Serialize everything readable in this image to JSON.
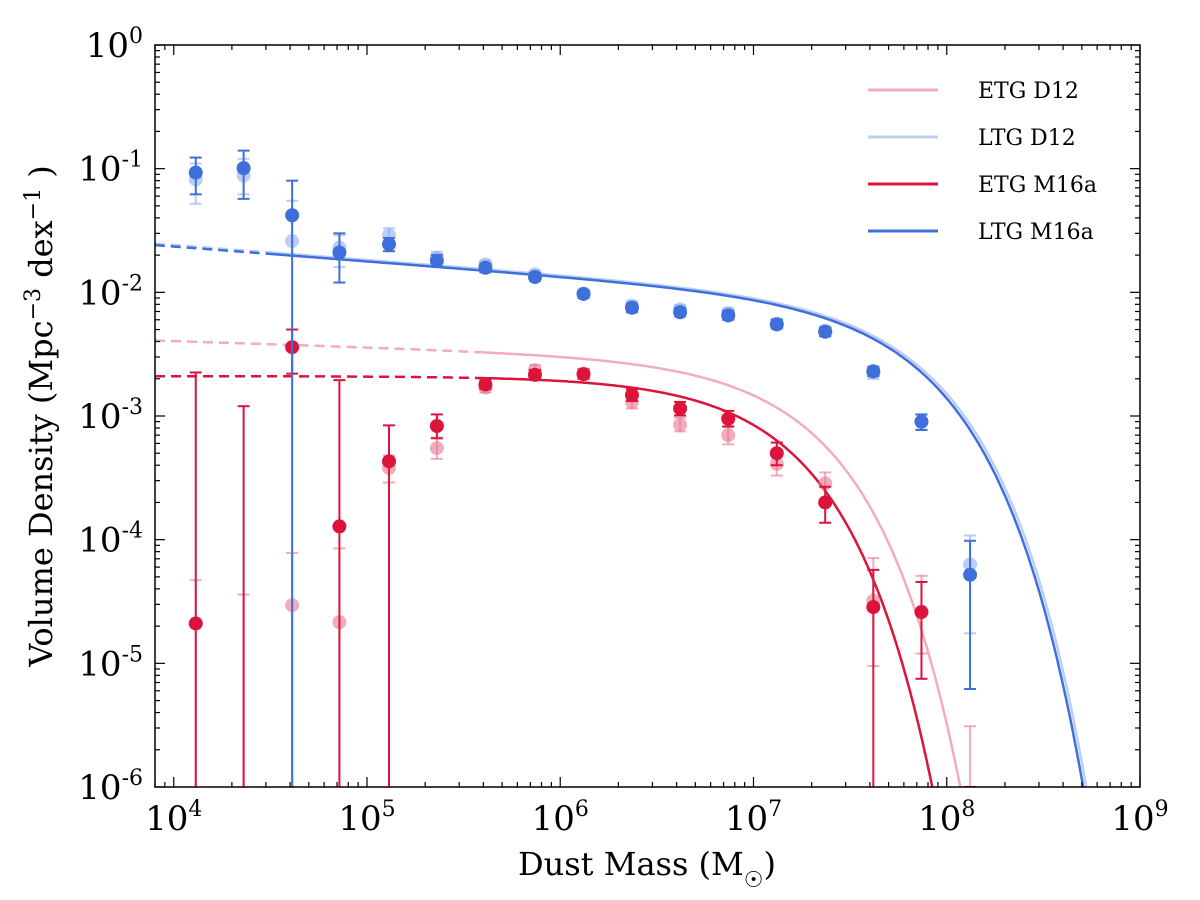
{
  "chart_data": {
    "type": "scatter",
    "title": "",
    "xlabel": "Dust Mass (M",
    "xlabel_sub": "☉",
    "xlabel_close": ")",
    "ylabel": "Volume Density (Mpc",
    "ylabel_sup1": "−3",
    "ylabel_mid": " dex",
    "ylabel_sup2": "−1",
    "ylabel_close": " )",
    "xscale": "log",
    "yscale": "log",
    "xlim": [
      8000,
      1000000000
    ],
    "ylim": [
      1e-06,
      1
    ],
    "x_ticks": [
      {
        "base": "10",
        "exp": "4",
        "value": 10000
      },
      {
        "base": "10",
        "exp": "5",
        "value": 100000
      },
      {
        "base": "10",
        "exp": "6",
        "value": 1000000
      },
      {
        "base": "10",
        "exp": "7",
        "value": 10000000
      },
      {
        "base": "10",
        "exp": "8",
        "value": 100000000
      },
      {
        "base": "10",
        "exp": "9",
        "value": 1000000000
      }
    ],
    "y_ticks": [
      {
        "base": "10",
        "exp": "0",
        "value": 1
      },
      {
        "base": "10",
        "exp": "-1",
        "value": 0.1
      },
      {
        "base": "10",
        "exp": "-2",
        "value": 0.01
      },
      {
        "base": "10",
        "exp": "-3",
        "value": 0.001
      },
      {
        "base": "10",
        "exp": "-4",
        "value": 0.0001
      },
      {
        "base": "10",
        "exp": "-5",
        "value": 1e-05
      },
      {
        "base": "10",
        "exp": "-6",
        "value": 1e-06
      }
    ],
    "legend_position": "top-right",
    "series": [
      {
        "name": "ETG D12",
        "color": "#e8778f",
        "alpha": 0.6,
        "fit": {
          "alpha": -1.05,
          "mstar": 15000000,
          "phistar": 0.0028,
          "solid_from": 400000
        },
        "points": [
          {
            "x": 13000,
            "y": null,
            "lo": 1e-06,
            "hi": 4.7e-05
          },
          {
            "x": 23000,
            "y": null,
            "lo": 1e-06,
            "hi": 3.6e-05
          },
          {
            "x": 41000,
            "y": 2.95e-05,
            "lo": 1e-06,
            "hi": 7.8e-05
          },
          {
            "x": 72000,
            "y": 2.15e-05,
            "lo": 1e-06,
            "hi": 8.5e-05
          },
          {
            "x": 130000,
            "y": 0.00038,
            "lo": 0.00029,
            "hi": 0.00048
          },
          {
            "x": 230000,
            "y": 0.00055,
            "lo": 0.00045,
            "hi": 0.00067
          },
          {
            "x": 410000,
            "y": 0.0017,
            "lo": 0.00155,
            "hi": 0.00188
          },
          {
            "x": 740000,
            "y": 0.00235,
            "lo": 0.00215,
            "hi": 0.00258
          },
          {
            "x": 1320000,
            "y": 0.0022,
            "lo": 0.002,
            "hi": 0.0024
          },
          {
            "x": 2350000,
            "y": 0.0013,
            "lo": 0.00115,
            "hi": 0.00147
          },
          {
            "x": 4170000,
            "y": 0.00085,
            "lo": 0.00075,
            "hi": 0.00097
          },
          {
            "x": 7400000,
            "y": 0.0007,
            "lo": 0.00059,
            "hi": 0.00083
          },
          {
            "x": 13200000,
            "y": 0.00041,
            "lo": 0.00033,
            "hi": 0.00051
          },
          {
            "x": 23500000,
            "y": 0.000285,
            "lo": 0.00021,
            "hi": 0.00035
          },
          {
            "x": 41700000,
            "y": 3.2e-05,
            "lo": 9.5e-06,
            "hi": 7.1e-05
          },
          {
            "x": 74000000,
            "y": null,
            "lo": 1.2e-05,
            "hi": 5.1e-05
          },
          {
            "x": 132000000,
            "y": null,
            "lo": 1e-06,
            "hi": 3.1e-06
          }
        ]
      },
      {
        "name": "LTG D12",
        "color": "#8faeee",
        "alpha": 0.6,
        "fit": {
          "alpha": -1.12,
          "mstar": 60000000,
          "phistar": 0.0085,
          "solid_from": 30000
        },
        "points": [
          {
            "x": 13000,
            "y": 0.082,
            "lo": 0.052,
            "hi": 0.11
          },
          {
            "x": 23000,
            "y": 0.088,
            "lo": 0.062,
            "hi": 0.12
          },
          {
            "x": 41000,
            "y": 0.026,
            "lo": 1e-06,
            "hi": 0.055
          },
          {
            "x": 72000,
            "y": 0.023,
            "lo": 0.016,
            "hi": 0.029
          },
          {
            "x": 130000,
            "y": 0.029,
            "lo": 0.025,
            "hi": 0.033
          },
          {
            "x": 230000,
            "y": 0.019,
            "lo": 0.017,
            "hi": 0.0213
          },
          {
            "x": 410000,
            "y": 0.0168,
            "lo": 0.0155,
            "hi": 0.0181
          },
          {
            "x": 740000,
            "y": 0.014,
            "lo": 0.0131,
            "hi": 0.015
          },
          {
            "x": 1320000,
            "y": 0.0098,
            "lo": 0.0091,
            "hi": 0.0105
          },
          {
            "x": 2350000,
            "y": 0.0078,
            "lo": 0.0072,
            "hi": 0.0085
          },
          {
            "x": 4170000,
            "y": 0.0073,
            "lo": 0.0067,
            "hi": 0.0079
          },
          {
            "x": 7400000,
            "y": 0.0068,
            "lo": 0.0063,
            "hi": 0.0074
          },
          {
            "x": 13200000,
            "y": 0.0056,
            "lo": 0.0052,
            "hi": 0.0061
          },
          {
            "x": 23500000,
            "y": 0.0049,
            "lo": 0.0045,
            "hi": 0.0053
          },
          {
            "x": 41700000,
            "y": 0.00225,
            "lo": 0.002,
            "hi": 0.0025
          },
          {
            "x": 74000000,
            "y": 0.0009,
            "lo": 0.00078,
            "hi": 0.00102
          },
          {
            "x": 132000000,
            "y": 6.3e-05,
            "lo": 1.75e-05,
            "hi": 0.000108
          }
        ]
      },
      {
        "name": "ETG M16a",
        "color": "#dc143c",
        "alpha": 1.0,
        "fit": {
          "alpha": -1.0,
          "mstar": 11000000,
          "phistar": 0.0021,
          "solid_from": 400000
        },
        "points": [
          {
            "x": 13000,
            "y": 2.1e-05,
            "lo": 1e-06,
            "hi": 0.00225
          },
          {
            "x": 23000,
            "y": null,
            "lo": 1e-06,
            "hi": 0.0012
          },
          {
            "x": 41000,
            "y": 0.0036,
            "lo": 0.0022,
            "hi": 0.005
          },
          {
            "x": 72000,
            "y": 0.000128,
            "lo": 1e-06,
            "hi": 0.00195
          },
          {
            "x": 130000,
            "y": 0.00043,
            "lo": 1e-06,
            "hi": 0.00084
          },
          {
            "x": 230000,
            "y": 0.00083,
            "lo": 0.00066,
            "hi": 0.00103
          },
          {
            "x": 410000,
            "y": 0.0018,
            "lo": 0.00165,
            "hi": 0.00197
          },
          {
            "x": 740000,
            "y": 0.00215,
            "lo": 0.00196,
            "hi": 0.00236
          },
          {
            "x": 1320000,
            "y": 0.00218,
            "lo": 0.002,
            "hi": 0.00238
          },
          {
            "x": 2350000,
            "y": 0.00148,
            "lo": 0.00132,
            "hi": 0.00165
          },
          {
            "x": 4170000,
            "y": 0.00115,
            "lo": 0.00101,
            "hi": 0.0013
          },
          {
            "x": 7400000,
            "y": 0.00095,
            "lo": 0.00082,
            "hi": 0.0011
          },
          {
            "x": 13200000,
            "y": 0.0005,
            "lo": 0.0004,
            "hi": 0.00061
          },
          {
            "x": 23500000,
            "y": 0.0002,
            "lo": 0.000137,
            "hi": 0.000268
          },
          {
            "x": 41700000,
            "y": 2.85e-05,
            "lo": 1e-06,
            "hi": 5.7e-05
          },
          {
            "x": 74000000,
            "y": 2.6e-05,
            "lo": 7.5e-06,
            "hi": 4.55e-05
          },
          {
            "x": 132000000,
            "y": null,
            "lo": 1e-06,
            "hi": 1e-06
          }
        ]
      },
      {
        "name": "LTG M16a",
        "color": "#3e6fdb",
        "alpha": 1.0,
        "fit": {
          "alpha": -1.12,
          "mstar": 58000000,
          "phistar": 0.0083,
          "solid_from": 30000
        },
        "points": [
          {
            "x": 13000,
            "y": 0.093,
            "lo": 0.062,
            "hi": 0.123
          },
          {
            "x": 23000,
            "y": 0.101,
            "lo": 0.057,
            "hi": 0.14
          },
          {
            "x": 41000,
            "y": 0.042,
            "lo": 1e-06,
            "hi": 0.08
          },
          {
            "x": 72000,
            "y": 0.021,
            "lo": 0.012,
            "hi": 0.03
          },
          {
            "x": 130000,
            "y": 0.0245,
            "lo": 0.0215,
            "hi": 0.0275
          },
          {
            "x": 230000,
            "y": 0.018,
            "lo": 0.0161,
            "hi": 0.0201
          },
          {
            "x": 410000,
            "y": 0.0158,
            "lo": 0.0145,
            "hi": 0.0171
          },
          {
            "x": 740000,
            "y": 0.0133,
            "lo": 0.0124,
            "hi": 0.0143
          },
          {
            "x": 1320000,
            "y": 0.0097,
            "lo": 0.009,
            "hi": 0.0104
          },
          {
            "x": 2350000,
            "y": 0.0075,
            "lo": 0.0069,
            "hi": 0.0081
          },
          {
            "x": 4170000,
            "y": 0.0069,
            "lo": 0.0064,
            "hi": 0.0075
          },
          {
            "x": 7400000,
            "y": 0.0065,
            "lo": 0.006,
            "hi": 0.0071
          },
          {
            "x": 13200000,
            "y": 0.0055,
            "lo": 0.0051,
            "hi": 0.006
          },
          {
            "x": 23500000,
            "y": 0.0048,
            "lo": 0.0044,
            "hi": 0.0052
          },
          {
            "x": 41700000,
            "y": 0.0023,
            "lo": 0.0021,
            "hi": 0.0025
          },
          {
            "x": 74000000,
            "y": 0.0009,
            "lo": 0.00077,
            "hi": 0.00103
          },
          {
            "x": 132000000,
            "y": 5.2e-05,
            "lo": 6.2e-06,
            "hi": 9.8e-05
          }
        ]
      }
    ]
  }
}
